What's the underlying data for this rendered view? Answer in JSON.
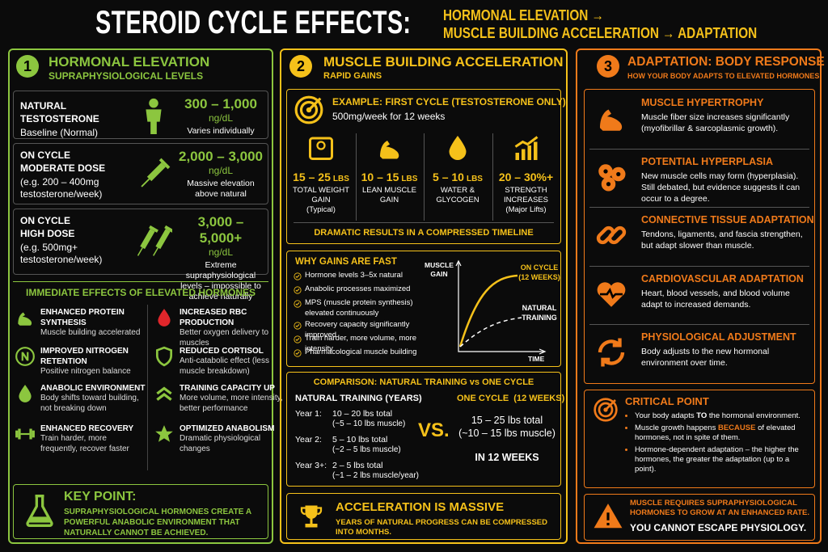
{
  "header": {
    "title": "STEROID CYCLE EFFECTS:",
    "subtitle": [
      "HORMONAL ELEVATION →",
      "MUSCLE BUILDING ACCELERATION → ADAPTATION"
    ]
  },
  "hormonal": {
    "number": "1",
    "title": "HORMONAL ELEVATION",
    "subtitle": "SUPRAPHYSIOLOGICAL LEVELS",
    "levels": [
      {
        "name": [
          "NATURAL TESTOSTERONE"
        ],
        "detail": "Baseline (Normal)",
        "value": "300 – 1,000",
        "unit": "ng/dL",
        "note": "Varies individually"
      },
      {
        "name": [
          "ON CYCLE",
          "MODERATE DOSE"
        ],
        "detail": "(e.g. 200 – 400mg testosterone/week)",
        "value": "2,000 – 3,000",
        "unit": "ng/dL",
        "note": "Massive elevation above natural"
      },
      {
        "name": [
          "ON CYCLE",
          "HIGH DOSE"
        ],
        "detail": "(e.g. 500mg+ testosterone/week)",
        "value": "3,000 – 5,000+",
        "unit": "ng/dL",
        "note": "Extreme supraphysiological levels – impossible to achieve naturally"
      }
    ],
    "effects_title": "IMMEDIATE EFFECTS OF ELEVATED HORMONES",
    "effects": [
      {
        "title": "ENHANCED PROTEIN SYNTHESIS",
        "text": "Muscle building accelerated"
      },
      {
        "title": "IMPROVED NITROGEN RETENTION",
        "text": "Positive nitrogen balance"
      },
      {
        "title": "ANABOLIC ENVIRONMENT",
        "text": "Body shifts toward building, not breaking down"
      },
      {
        "title": "ENHANCED RECOVERY",
        "text": "Train harder, more frequently, recover faster"
      },
      {
        "title": "INCREASED RBC PRODUCTION",
        "text": "Better oxygen delivery to muscles"
      },
      {
        "title": "REDUCED CORTISOL",
        "text": "Anti-catabolic effect (less muscle breakdown)"
      },
      {
        "title": "TRAINING CAPACITY UP",
        "text": "More volume, more intensity, better performance"
      },
      {
        "title": "OPTIMIZED ANABOLISM",
        "text": "Dramatic physiological changes"
      }
    ],
    "key_point": {
      "title": "KEY POINT:",
      "text": "SUPRAPHYSIOLOGICAL HORMONES CREATE A POWERFUL ANABOLIC ENVIRONMENT THAT NATURALLY CANNOT BE ACHIEVED."
    }
  },
  "acceleration": {
    "number": "2",
    "title": "MUSCLE BUILDING ACCELERATION",
    "subtitle": "RAPID GAINS",
    "example": {
      "title": "EXAMPLE: FIRST CYCLE (TESTOSTERONE ONLY)",
      "text": "500mg/week for 12 weeks",
      "stats": [
        {
          "value": "15 – 25",
          "unit": "LBS",
          "label": "TOTAL WEIGHT GAIN",
          "note": "(Typical)"
        },
        {
          "value": "10 – 15",
          "unit": "LBS",
          "label": "LEAN MUSCLE GAIN"
        },
        {
          "value": "5 – 10",
          "unit": "LBS",
          "label": "WATER & GLYCOGEN"
        },
        {
          "value": "20 – 30%+",
          "label": "STRENGTH INCREASES",
          "note": "(Major Lifts)"
        }
      ],
      "banner": "DRAMATIC RESULTS IN A COMPRESSED TIMELINE"
    },
    "why": {
      "title": "WHY GAINS ARE FAST",
      "items": [
        "Hormone levels 3–5x natural",
        "Anabolic processes maximized",
        "MPS (muscle protein synthesis) elevated continuously",
        "Recovery capacity significantly improved",
        "Train harder, more volume, more intensity",
        "Pharmacological muscle building"
      ],
      "y_label": "MUSCLE GAIN",
      "x_label": "TIME",
      "cycle_label": "ON CYCLE (12 WEEKS)",
      "natural_label": "NATURAL TRAINING"
    },
    "comparison": {
      "title": "COMPARISON: NATURAL TRAINING vs ONE CYCLE",
      "natural_title": "NATURAL TRAINING (YEARS)",
      "natural_rows": [
        {
          "period": "Year 1:",
          "total": "10 – 20 lbs total",
          "muscle": "(~5 – 10 lbs muscle)"
        },
        {
          "period": "Year 2:",
          "total": "5 – 10 lbs total",
          "muscle": "(~2 – 5 lbs muscle)"
        },
        {
          "period": "Year 3+:",
          "total": "2 – 5 lbs total",
          "muscle": "(~1 – 2 lbs muscle/year)"
        }
      ],
      "vs": "VS.",
      "cycle_title": "ONE CYCLE  (12 WEEKS)",
      "cycle_total": "15 – 25 lbs total",
      "cycle_muscle": "(~10 – 15 lbs muscle)",
      "cycle_footer": "IN 12 WEEKS"
    },
    "footer": {
      "title": "ACCELERATION IS MASSIVE",
      "text": "YEARS OF NATURAL PROGRESS CAN BE COMPRESSED INTO MONTHS."
    }
  },
  "adaptation": {
    "number": "3",
    "title": "ADAPTATION: BODY RESPONSE",
    "subtitle": "HOW YOUR BODY ADAPTS TO ELEVATED HORMONES",
    "items": [
      {
        "title": "MUSCLE HYPERTROPHY",
        "text": "Muscle fiber size increases significantly (myofibrillar & sarcoplasmic growth)."
      },
      {
        "title": "POTENTIAL HYPERPLASIA",
        "text": "New muscle cells may form (hyperplasia). Still debated, but evidence suggests it can occur to a degree."
      },
      {
        "title": "CONNECTIVE TISSUE ADAPTATION",
        "text": "Tendons, ligaments, and fascia strengthen, but adapt slower than muscle."
      },
      {
        "title": "CARDIOVASCULAR ADAPTATION",
        "text": "Heart, blood vessels, and blood volume adapt to increased demands."
      },
      {
        "title": "PHYSIOLOGICAL ADJUSTMENT",
        "text": "Body adjusts to the new hormonal environment over time."
      }
    ],
    "critical": {
      "title": "CRITICAL POINT",
      "bullets": [
        [
          "Your body adapts ",
          "TO",
          " the hormonal environment."
        ],
        [
          "Muscle growth happens ",
          "BECAUSE",
          " of elevated hormones, not in spite of them."
        ],
        [
          "Hormone-dependent adaptation – the higher the hormones, the greater the adaptation (up to a point)."
        ]
      ]
    },
    "warning": {
      "text": "MUSCLE REQUIRES SUPRAPHYSIOLOGICAL HORMONES TO GROW AT AN ENHANCED RATE.",
      "tagline": "YOU CANNOT ESCAPE PHYSIOLOGY."
    }
  }
}
